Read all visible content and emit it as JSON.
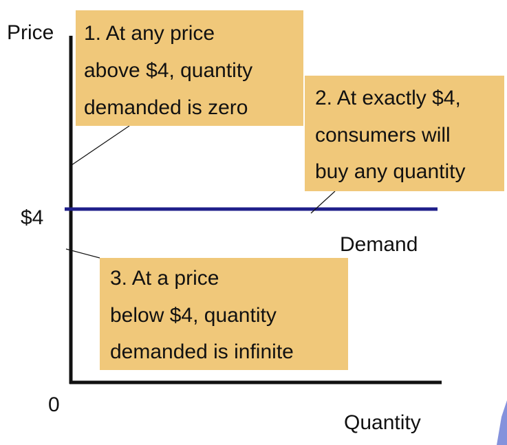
{
  "chart_data": {
    "type": "line",
    "xlabel": "Quantity",
    "ylabel": "Price",
    "origin_label": "0",
    "y_ticks": [
      {
        "value": 4,
        "label": "$4"
      }
    ],
    "series": [
      {
        "name": "Demand",
        "x": [
          0,
          10
        ],
        "y": [
          4,
          4
        ]
      }
    ],
    "xlim": [
      0,
      10
    ],
    "ylim": [
      0,
      8
    ],
    "grid": false,
    "annotations": [
      {
        "lines": [
          "1. At any price",
          "above $4, quantity",
          "demanded is zero"
        ]
      },
      {
        "lines": [
          "2. At exactly $4,",
          "consumers will",
          "buy any quantity"
        ]
      },
      {
        "lines": [
          "3. At a price",
          "below $4, quantity",
          "demanded is infinite"
        ]
      }
    ],
    "colors": {
      "demand_line": "#1f1f8a",
      "axes": "#111111",
      "annotation_fill": "#f0c87a",
      "decoration": "#6f7fd6"
    }
  }
}
